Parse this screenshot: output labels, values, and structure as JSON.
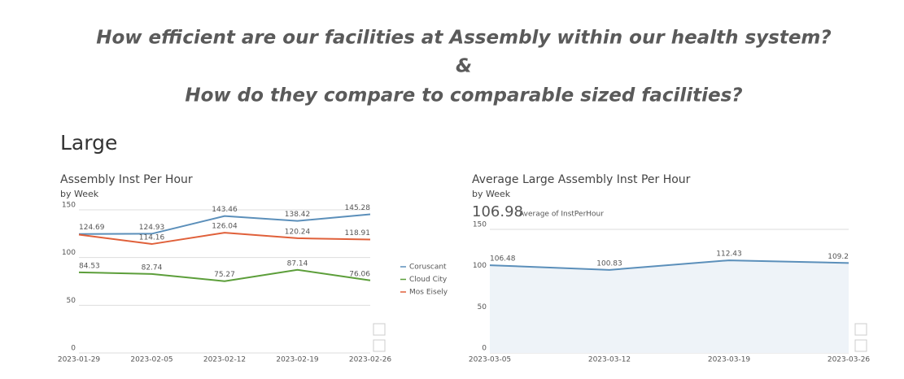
{
  "title_lines": [
    "How efficient are our facilities at Assembly within our health system?",
    "&",
    "How do they compare to comparable sized facilities?"
  ],
  "section": "Large",
  "chart_data": [
    {
      "type": "line",
      "title": "Assembly Inst Per Hour",
      "subtitle": "by Week",
      "categories": [
        "2023-01-29",
        "2023-02-05",
        "2023-02-12",
        "2023-02-19",
        "2023-02-26"
      ],
      "series": [
        {
          "name": "Coruscant",
          "color": "#5b8fba",
          "values": [
            124.69,
            124.93,
            143.46,
            138.42,
            145.28
          ]
        },
        {
          "name": "Cloud City",
          "color": "#5c9e3a",
          "values": [
            84.53,
            82.74,
            75.27,
            87.14,
            76.06
          ]
        },
        {
          "name": "Mos Eisely",
          "color": "#e0603a",
          "values": [
            124,
            114.16,
            126.04,
            120.24,
            118.91
          ],
          "value_labels": [
            null,
            "114.16",
            "126.04",
            "120.24",
            "118.91"
          ]
        }
      ],
      "ylim": [
        0,
        150
      ],
      "yticks": [
        0,
        50,
        100,
        150
      ],
      "grid": true,
      "legend": "right"
    },
    {
      "type": "line",
      "title": "Average Large Assembly Inst Per Hour",
      "subtitle": "by Week",
      "kpi": "106.98",
      "kpi_label": "Average of InstPerHour",
      "categories": [
        "2023-03-05",
        "2023-03-12",
        "2023-03-19",
        "2023-03-26"
      ],
      "series": [
        {
          "color": "#5b8fba",
          "values": [
            106.48,
            100.83,
            112.43,
            109.2
          ]
        }
      ],
      "area": true,
      "ylim": [
        0,
        150
      ],
      "yticks": [
        0,
        50,
        100,
        150
      ],
      "grid": true
    }
  ]
}
